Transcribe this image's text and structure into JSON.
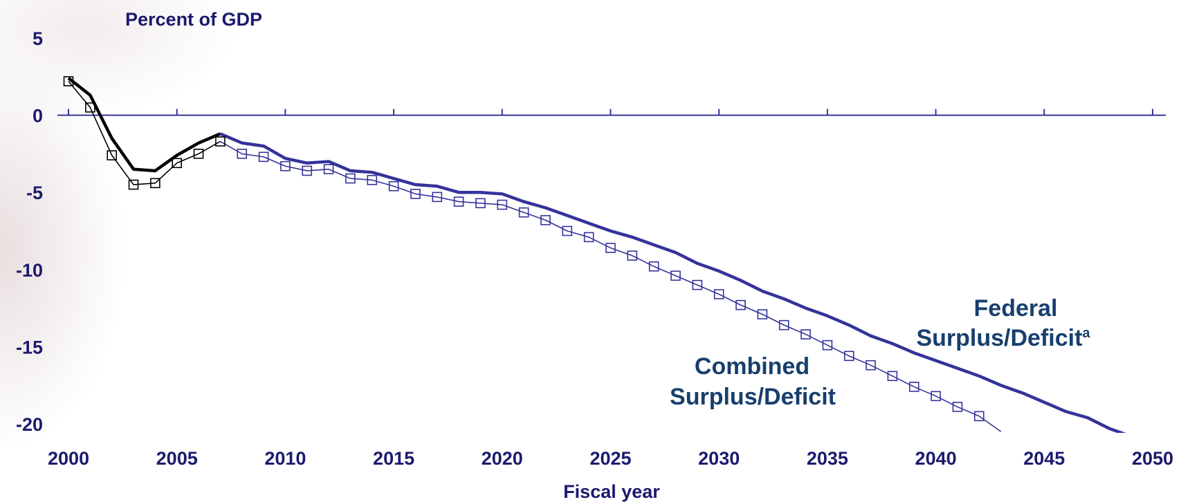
{
  "chart_data": {
    "type": "line",
    "ylabel": "Percent of GDP",
    "xlabel": "Fiscal year",
    "xlim": [
      2000,
      2050
    ],
    "ylim": [
      -20,
      5
    ],
    "x_ticks": [
      2000,
      2005,
      2010,
      2015,
      2020,
      2025,
      2030,
      2035,
      2040,
      2045,
      2050
    ],
    "y_ticks": [
      5,
      0,
      -5,
      -10,
      -15,
      -20
    ],
    "grid": false,
    "colors": {
      "federal": "#34339a",
      "combined": "#34339a",
      "historical": "#000000",
      "text": "#1b1a6e",
      "label": "#173f6d"
    },
    "series": [
      {
        "name": "Federal Surplus/Deficit",
        "name_main": "Federal",
        "name_line2": "Surplus/Deficit",
        "footnote": "a",
        "marker": "none",
        "x": [
          2000,
          2001,
          2002,
          2003,
          2004,
          2005,
          2006,
          2007,
          2008,
          2009,
          2010,
          2011,
          2012,
          2013,
          2014,
          2015,
          2016,
          2017,
          2018,
          2019,
          2020,
          2021,
          2022,
          2023,
          2024,
          2025,
          2026,
          2027,
          2028,
          2029,
          2030,
          2031,
          2032,
          2033,
          2034,
          2035,
          2036,
          2037,
          2038,
          2039,
          2040,
          2041,
          2042,
          2043,
          2044,
          2045,
          2046,
          2047,
          2048,
          2049
        ],
        "values": [
          2.4,
          1.3,
          -1.5,
          -3.5,
          -3.6,
          -2.6,
          -1.8,
          -1.2,
          -1.8,
          -2.0,
          -2.8,
          -3.1,
          -3.0,
          -3.6,
          -3.7,
          -4.1,
          -4.5,
          -4.6,
          -5.0,
          -5.0,
          -5.1,
          -5.6,
          -6.0,
          -6.5,
          -7.0,
          -7.5,
          -7.9,
          -8.4,
          -8.9,
          -9.6,
          -10.1,
          -10.7,
          -11.4,
          -11.9,
          -12.5,
          -13.0,
          -13.6,
          -14.3,
          -14.8,
          -15.4,
          -15.9,
          -16.4,
          -16.9,
          -17.5,
          -18.0,
          -18.6,
          -19.2,
          -19.6,
          -20.3,
          -20.8
        ]
      },
      {
        "name": "Combined Surplus/Deficit",
        "name_line1": "Combined",
        "name_line2": "Surplus/Deficit",
        "marker": "square",
        "x": [
          2000,
          2001,
          2002,
          2003,
          2004,
          2005,
          2006,
          2007,
          2008,
          2009,
          2010,
          2011,
          2012,
          2013,
          2014,
          2015,
          2016,
          2017,
          2018,
          2019,
          2020,
          2021,
          2022,
          2023,
          2024,
          2025,
          2026,
          2027,
          2028,
          2029,
          2030,
          2031,
          2032,
          2033,
          2034,
          2035,
          2036,
          2037,
          2038,
          2039,
          2040,
          2041,
          2042,
          2043
        ],
        "values": [
          2.2,
          0.5,
          -2.6,
          -4.5,
          -4.4,
          -3.1,
          -2.5,
          -1.7,
          -2.5,
          -2.7,
          -3.3,
          -3.6,
          -3.5,
          -4.1,
          -4.2,
          -4.6,
          -5.1,
          -5.3,
          -5.6,
          -5.7,
          -5.8,
          -6.3,
          -6.8,
          -7.5,
          -7.9,
          -8.6,
          -9.1,
          -9.8,
          -10.4,
          -11.0,
          -11.6,
          -12.3,
          -12.9,
          -13.6,
          -14.2,
          -14.9,
          -15.6,
          -16.2,
          -16.9,
          -17.6,
          -18.2,
          -18.9,
          -19.5,
          -20.5
        ]
      }
    ],
    "historical_years_end": 2007
  }
}
